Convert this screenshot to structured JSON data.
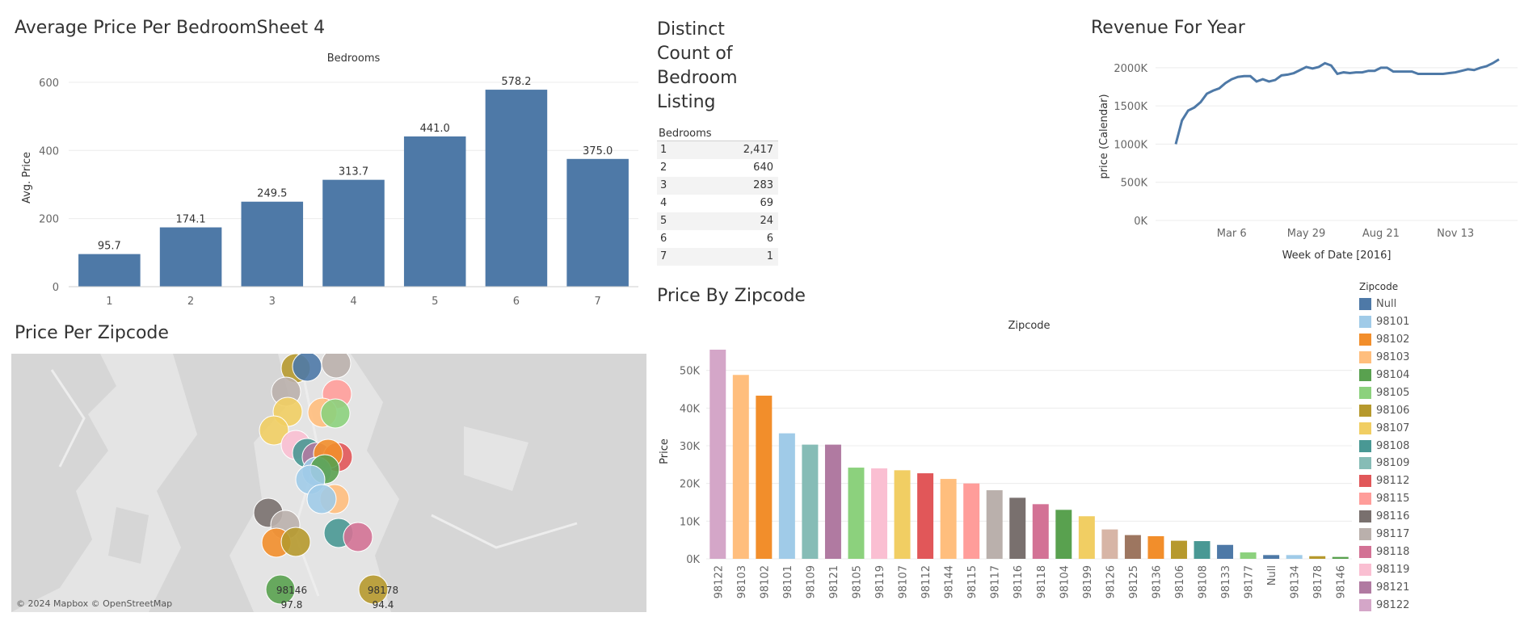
{
  "titles": {
    "bedroom_chart": "Average Price Per BedroomSheet 4",
    "distinct_count": [
      "Distinct",
      "Count of",
      "Bedroom",
      "Listing"
    ],
    "revenue": "Revenue For Year",
    "zipcode_map": "Price Per Zipcode",
    "zipcode_bars": "Price By Zipcode"
  },
  "map": {
    "attribution": "© 2024 Mapbox © OpenStreetMap",
    "labels": [
      {
        "zip": "98146",
        "price": "97.8"
      },
      {
        "zip": "98178",
        "price": "94.4"
      }
    ]
  },
  "distinct_table": {
    "header": "Bedrooms",
    "rows": [
      {
        "bedrooms": "1",
        "count": "2,417"
      },
      {
        "bedrooms": "2",
        "count": "640"
      },
      {
        "bedrooms": "3",
        "count": "283"
      },
      {
        "bedrooms": "4",
        "count": "69"
      },
      {
        "bedrooms": "5",
        "count": "24"
      },
      {
        "bedrooms": "6",
        "count": "6"
      },
      {
        "bedrooms": "7",
        "count": "1"
      }
    ]
  },
  "legend": {
    "title": "Zipcode",
    "items": [
      {
        "label": "Null",
        "color": "#4e79a7"
      },
      {
        "label": "98101",
        "color": "#a0cbe8"
      },
      {
        "label": "98102",
        "color": "#f28e2b"
      },
      {
        "label": "98103",
        "color": "#ffbe7d"
      },
      {
        "label": "98104",
        "color": "#59a14f"
      },
      {
        "label": "98105",
        "color": "#8cd17d"
      },
      {
        "label": "98106",
        "color": "#b6992d"
      },
      {
        "label": "98107",
        "color": "#f1ce63"
      },
      {
        "label": "98108",
        "color": "#499894"
      },
      {
        "label": "98109",
        "color": "#86bcb6"
      },
      {
        "label": "98112",
        "color": "#e15759"
      },
      {
        "label": "98115",
        "color": "#ff9d9a"
      },
      {
        "label": "98116",
        "color": "#79706e"
      },
      {
        "label": "98117",
        "color": "#bab0ac"
      },
      {
        "label": "98118",
        "color": "#d37295"
      },
      {
        "label": "98119",
        "color": "#fabfd2"
      },
      {
        "label": "98121",
        "color": "#b07aa1"
      },
      {
        "label": "98122",
        "color": "#d4a6c8"
      }
    ]
  },
  "chart_data": [
    {
      "type": "bar",
      "title": "Average Price Per BedroomSheet 4",
      "header": "Bedrooms",
      "xlabel": "",
      "ylabel": "Avg. Price",
      "categories": [
        "1",
        "2",
        "3",
        "4",
        "5",
        "6",
        "7"
      ],
      "values": [
        95.7,
        174.1,
        249.5,
        313.7,
        441.0,
        578.2,
        375.0
      ],
      "value_labels": [
        "95.7",
        "174.1",
        "249.5",
        "313.7",
        "441.0",
        "578.2",
        "375.0"
      ],
      "yticks": [
        "0",
        "200",
        "400",
        "600"
      ],
      "ylim": [
        0,
        640
      ],
      "color": "#4e79a7"
    },
    {
      "type": "line",
      "title": "Revenue For Year",
      "xlabel": "Week of Date [2016]",
      "ylabel": "price (Calendar)",
      "xticks": [
        "Mar 6",
        "May 29",
        "Aug 21",
        "Nov 13"
      ],
      "yticks": [
        "0K",
        "500K",
        "1000K",
        "1500K",
        "2000K"
      ],
      "ylim": [
        0,
        2200000
      ],
      "values": [
        1000000,
        1310000,
        1440000,
        1480000,
        1550000,
        1660000,
        1700000,
        1730000,
        1800000,
        1850000,
        1880000,
        1890000,
        1890000,
        1820000,
        1850000,
        1820000,
        1840000,
        1900000,
        1910000,
        1930000,
        1970000,
        2010000,
        1990000,
        2010000,
        2060000,
        2030000,
        1920000,
        1940000,
        1930000,
        1940000,
        1940000,
        1960000,
        1960000,
        2000000,
        2000000,
        1950000,
        1950000,
        1950000,
        1950000,
        1920000,
        1920000,
        1920000,
        1920000,
        1920000,
        1930000,
        1940000,
        1960000,
        1980000,
        1970000,
        2000000,
        2020000,
        2060000,
        2110000
      ],
      "color": "#4e79a7"
    },
    {
      "type": "bar",
      "title": "Price By Zipcode",
      "header": "Zipcode",
      "xlabel": "",
      "ylabel": "Price",
      "categories": [
        "98122",
        "98103",
        "98102",
        "98101",
        "98109",
        "98121",
        "98105",
        "98119",
        "98107",
        "98112",
        "98144",
        "98115",
        "98117",
        "98116",
        "98118",
        "98104",
        "98199",
        "98126",
        "98125",
        "98136",
        "98106",
        "98108",
        "98133",
        "98177",
        "Null",
        "98134",
        "98178",
        "98146"
      ],
      "values": [
        55500,
        48800,
        43300,
        33300,
        30300,
        30300,
        24200,
        24000,
        23500,
        22700,
        21200,
        20000,
        18200,
        16200,
        14500,
        13000,
        11300,
        7800,
        6300,
        6000,
        4800,
        4700,
        3700,
        1700,
        1000,
        1000,
        700,
        500
      ],
      "yticks": [
        "0K",
        "10K",
        "20K",
        "30K",
        "40K",
        "50K"
      ],
      "ylim": [
        0,
        57000
      ],
      "colors": [
        "#d4a6c8",
        "#ffbe7d",
        "#f28e2b",
        "#a0cbe8",
        "#86bcb6",
        "#b07aa1",
        "#8cd17d",
        "#fabfd2",
        "#f1ce63",
        "#e15759",
        "#ffbe7d",
        "#ff9d9a",
        "#bab0ac",
        "#79706e",
        "#d37295",
        "#59a14f",
        "#f1ce63",
        "#d7b5a6",
        "#9d7660",
        "#f28e2b",
        "#b6992d",
        "#499894",
        "#4e79a7",
        "#8cd17d",
        "#4e79a7",
        "#a0cbe8",
        "#b6992d",
        "#59a14f"
      ]
    }
  ]
}
